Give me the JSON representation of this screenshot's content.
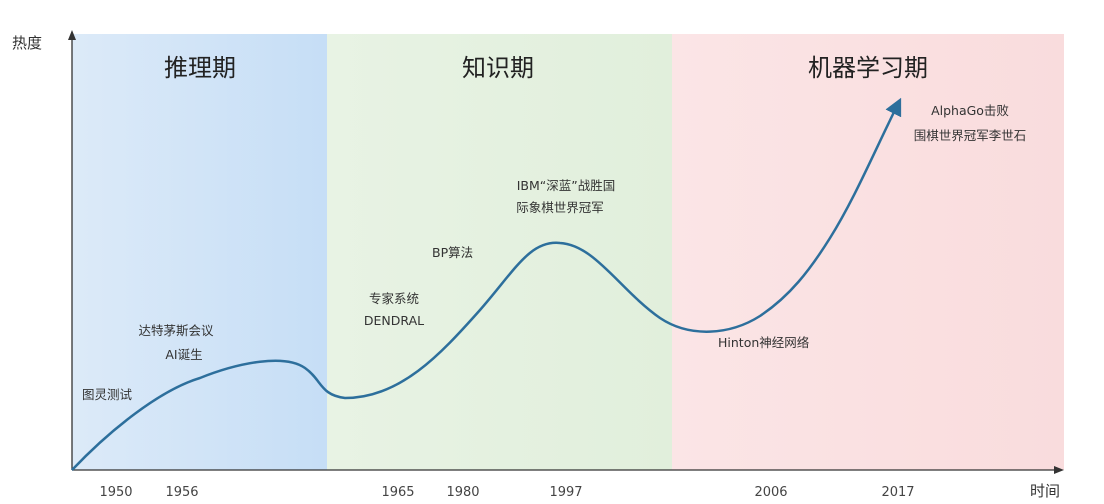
{
  "axis": {
    "y_label": "热度",
    "x_label": "时间"
  },
  "phases": [
    {
      "title": "推理期",
      "color": "#cfe3f9"
    },
    {
      "title": "知识期",
      "color": "#e3f1de"
    },
    {
      "title": "机器学习期",
      "color": "#fbe1e3"
    }
  ],
  "years": [
    "1950",
    "1956",
    "1965",
    "1980",
    "1997",
    "2006",
    "2017"
  ],
  "annotations": {
    "turing": "图灵测试",
    "dartmouth_1": "达特茅斯会议",
    "dartmouth_2": "AI诞生",
    "expert_1": "专家系统",
    "expert_2": "DENDRAL",
    "bp": "BP算法",
    "deepblue_1": "IBM“深蓝”战胜国",
    "deepblue_2": "际象棋世界冠军",
    "hinton": "Hinton神经网络",
    "alphago_1": "AlphaGo击败",
    "alphago_2": "围棋世界冠军李世石"
  },
  "colors": {
    "curve": "#2d6f9c",
    "axis": "#333333"
  }
}
